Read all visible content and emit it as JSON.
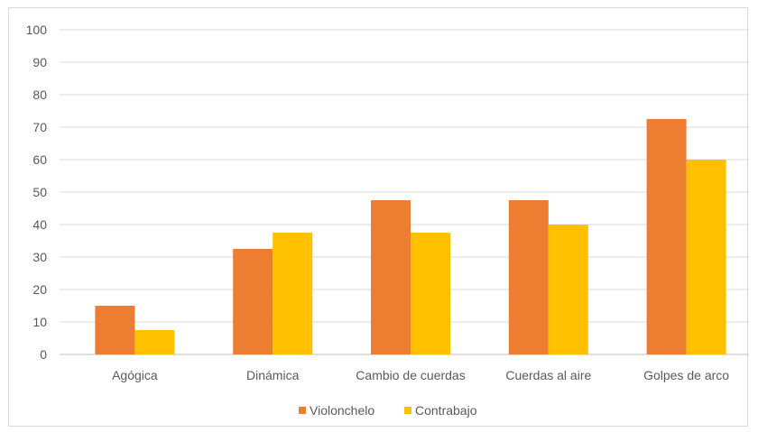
{
  "chart_data": {
    "type": "bar",
    "title": "",
    "xlabel": "",
    "ylabel": "",
    "ylim": [
      0,
      100
    ],
    "yticks": [
      0,
      10,
      20,
      30,
      40,
      50,
      60,
      70,
      80,
      90,
      100
    ],
    "grid": true,
    "legend_position": "bottom",
    "categories": [
      "Agógica",
      "Dinámica",
      "Cambio de cuerdas",
      "Cuerdas al aire",
      "Golpes de arco"
    ],
    "series": [
      {
        "name": "Violonchelo",
        "color": "#ED7D31",
        "values": [
          15,
          32.5,
          47.5,
          47.5,
          72.5
        ]
      },
      {
        "name": "Contrabajo",
        "color": "#FFC000",
        "values": [
          7.5,
          37.5,
          37.5,
          40,
          60
        ]
      }
    ]
  }
}
